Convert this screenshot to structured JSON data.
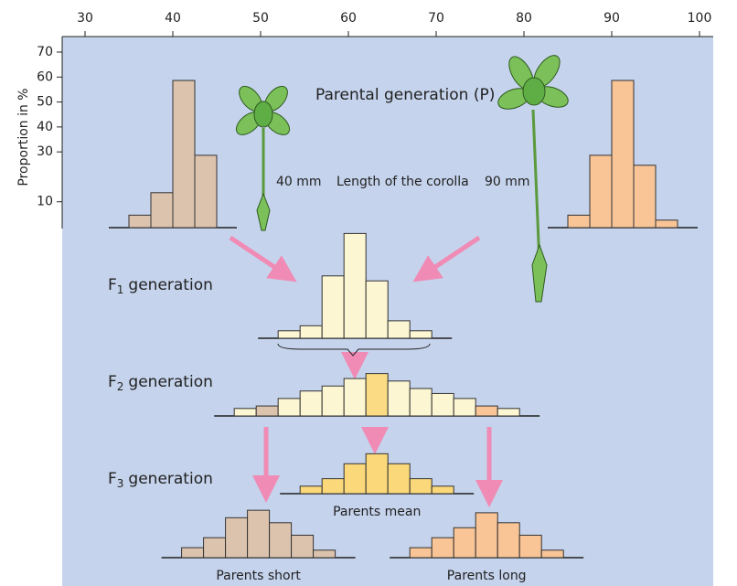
{
  "axes": {
    "ylabel": "Proportion in %",
    "xlim": [
      30,
      100
    ],
    "xticks": [
      30,
      40,
      50,
      60,
      70,
      80,
      90,
      100
    ],
    "ylim": [
      0,
      70
    ],
    "yticks": [
      10,
      30,
      40,
      50,
      60,
      70
    ]
  },
  "title": "Parental generation (P)",
  "short_length": "40 mm",
  "corolla_label": "Length of the corolla",
  "long_length": "90 mm",
  "generations": [
    {
      "prefix": "F",
      "sub": "1",
      "rest": "generation"
    },
    {
      "prefix": "F",
      "sub": "2",
      "rest": "generation"
    },
    {
      "prefix": "F",
      "sub": "3",
      "rest": "generation"
    }
  ],
  "histograms": [
    {
      "bins": [
        35,
        37.5,
        40,
        42.5,
        45
      ],
      "values": [
        5,
        14,
        59,
        29
      ],
      "colors": [
        "#dcc3ad",
        "#dcc3ad",
        "#dcc3ad",
        "#dcc3ad"
      ]
    },
    {
      "bins": [
        85,
        87.5,
        90,
        92.5,
        95,
        97.5
      ],
      "values": [
        5,
        29,
        59,
        25,
        3
      ],
      "colors": [
        "#f9c597",
        "#f9c597",
        "#f9c597",
        "#f9c597",
        "#f9c597"
      ]
    },
    {
      "bins": [
        52,
        54.5,
        57,
        59.5,
        62,
        64.5,
        67,
        69.5
      ],
      "values": [
        3,
        5,
        25,
        42,
        23,
        7,
        3
      ],
      "colors": [
        "#fdf6d2",
        "#fdf6d2",
        "#fdf6d2",
        "#fdf6d2",
        "#fdf6d2",
        "#fdf6d2",
        "#fdf6d2"
      ]
    },
    {
      "bins": [
        47,
        49.5,
        52,
        54.5,
        57,
        59.5,
        62,
        64.5,
        67,
        69.5,
        72,
        74.5,
        77,
        79.5
      ],
      "values": [
        3,
        4,
        7,
        10,
        12,
        15,
        17,
        14,
        11,
        9,
        7,
        4,
        3
      ],
      "colors": [
        "#fdf6d2",
        "#dcc3ad",
        "#fdf6d2",
        "#fdf6d2",
        "#fdf6d2",
        "#fdf6d2",
        "#fbdc84",
        "#fdf6d2",
        "#fdf6d2",
        "#fdf6d2",
        "#fdf6d2",
        "#f9c597",
        "#fdf6d2"
      ]
    },
    {
      "label": "Parents mean",
      "bins": [
        54.5,
        57,
        59.5,
        62,
        64.5,
        67,
        69.5,
        72
      ],
      "values": [
        3,
        6,
        12,
        16,
        12,
        6,
        3
      ],
      "colors": [
        "#fbd97a",
        "#fbd97a",
        "#fbd97a",
        "#fbd97a",
        "#fbd97a",
        "#fbd97a",
        "#fbd97a"
      ]
    },
    {
      "label": "Parents short",
      "bins": [
        41,
        43.5,
        46,
        48.5,
        51,
        53.5,
        56,
        58.5
      ],
      "values": [
        4,
        8,
        16,
        19,
        14,
        9,
        3
      ],
      "colors": [
        "#dcc3ad",
        "#dcc3ad",
        "#dcc3ad",
        "#dcc3ad",
        "#dcc3ad",
        "#dcc3ad",
        "#dcc3ad"
      ]
    },
    {
      "label": "Parents long",
      "bins": [
        67,
        69.5,
        72,
        74.5,
        77,
        79.5,
        82,
        84.5
      ],
      "values": [
        4,
        8,
        12,
        18,
        14,
        9,
        3
      ],
      "colors": [
        "#f9c597",
        "#f9c597",
        "#f9c597",
        "#f9c597",
        "#f9c597",
        "#f9c597",
        "#f9c597"
      ]
    }
  ]
}
